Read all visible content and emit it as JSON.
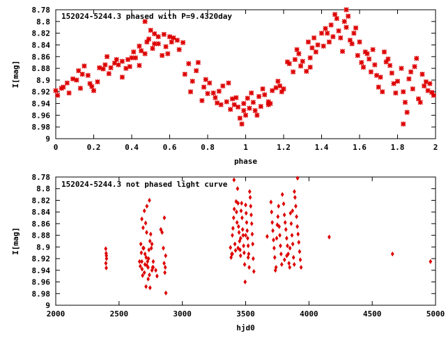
{
  "chart_data": [
    {
      "type": "scatter",
      "title": "152024-5244.3 phased with P=9.4320day",
      "xlabel": "phase",
      "ylabel": "I[mag]",
      "xlim": [
        0,
        2
      ],
      "ylim": [
        8.78,
        9.0
      ],
      "y_inverted": true,
      "x_ticks": [
        "0",
        "0.2",
        "0.4",
        "0.6",
        "0.8",
        "1",
        "1.2",
        "1.4",
        "1.6",
        "1.8",
        "2"
      ],
      "y_ticks": [
        "8.78",
        "8.8",
        "8.82",
        "8.84",
        "8.86",
        "8.88",
        "8.9",
        "8.92",
        "8.94",
        "8.96",
        "8.98",
        "9"
      ],
      "marker": "cross",
      "color": "#dd0000",
      "points": [
        [
          0.0,
          8.918
        ],
        [
          0.01,
          8.926
        ],
        [
          0.03,
          8.914
        ],
        [
          0.04,
          8.912
        ],
        [
          0.06,
          8.905
        ],
        [
          0.07,
          8.922
        ],
        [
          0.09,
          8.898
        ],
        [
          0.11,
          8.9
        ],
        [
          0.12,
          8.884
        ],
        [
          0.13,
          8.914
        ],
        [
          0.14,
          8.89
        ],
        [
          0.15,
          8.876
        ],
        [
          0.17,
          8.892
        ],
        [
          0.18,
          8.906
        ],
        [
          0.19,
          8.911
        ],
        [
          0.2,
          8.918
        ],
        [
          0.22,
          8.903
        ],
        [
          0.23,
          8.879
        ],
        [
          0.25,
          8.881
        ],
        [
          0.26,
          8.874
        ],
        [
          0.27,
          8.86
        ],
        [
          0.28,
          8.889
        ],
        [
          0.29,
          8.879
        ],
        [
          0.31,
          8.871
        ],
        [
          0.32,
          8.865
        ],
        [
          0.33,
          8.874
        ],
        [
          0.35,
          8.895
        ],
        [
          0.35,
          8.868
        ],
        [
          0.37,
          8.88
        ],
        [
          0.38,
          8.865
        ],
        [
          0.39,
          8.877
        ],
        [
          0.4,
          8.862
        ],
        [
          0.41,
          8.852
        ],
        [
          0.42,
          8.862
        ],
        [
          0.44,
          8.875
        ],
        [
          0.44,
          8.842
        ],
        [
          0.45,
          8.85
        ],
        [
          0.47,
          8.855
        ],
        [
          0.48,
          8.835
        ],
        [
          0.49,
          8.83
        ],
        [
          0.5,
          8.815
        ],
        [
          0.51,
          8.846
        ],
        [
          0.52,
          8.838
        ],
        [
          0.54,
          8.826
        ],
        [
          0.54,
          8.838
        ],
        [
          0.56,
          8.858
        ],
        [
          0.57,
          8.822
        ],
        [
          0.58,
          8.843
        ],
        [
          0.59,
          8.855
        ],
        [
          0.6,
          8.826
        ],
        [
          0.61,
          8.835
        ],
        [
          0.62,
          8.828
        ],
        [
          0.64,
          8.832
        ],
        [
          0.65,
          8.848
        ],
        [
          0.67,
          8.836
        ],
        [
          0.68,
          8.89
        ],
        [
          0.7,
          8.872
        ],
        [
          0.71,
          8.92
        ],
        [
          0.72,
          8.902
        ],
        [
          0.74,
          8.884
        ],
        [
          0.75,
          8.87
        ],
        [
          0.77,
          8.935
        ],
        [
          0.78,
          8.912
        ],
        [
          0.79,
          8.899
        ],
        [
          0.8,
          8.923
        ],
        [
          0.81,
          8.905
        ],
        [
          0.83,
          8.922
        ],
        [
          0.84,
          8.93
        ],
        [
          0.85,
          8.939
        ],
        [
          0.86,
          8.919
        ],
        [
          0.87,
          8.942
        ],
        [
          0.88,
          8.91
        ],
        [
          0.9,
          8.937
        ],
        [
          0.91,
          8.905
        ],
        [
          0.92,
          8.95
        ],
        [
          0.93,
          8.932
        ],
        [
          0.94,
          8.942
        ],
        [
          0.95,
          8.93
        ],
        [
          0.96,
          8.946
        ],
        [
          0.97,
          8.965
        ],
        [
          0.98,
          8.975
        ],
        [
          0.99,
          8.952
        ],
        [
          0.99,
          8.94
        ],
        [
          1.0,
          8.96
        ],
        [
          1.01,
          8.931
        ],
        [
          1.02,
          8.948
        ],
        [
          1.03,
          8.922
        ],
        [
          1.04,
          8.938
        ],
        [
          1.05,
          8.952
        ],
        [
          1.06,
          8.96
        ],
        [
          1.07,
          8.928
        ],
        [
          1.08,
          8.945
        ],
        [
          1.09,
          8.915
        ],
        [
          1.1,
          8.925
        ],
        [
          1.12,
          8.937
        ],
        [
          1.13,
          8.94
        ],
        [
          1.14,
          8.918
        ],
        [
          1.16,
          8.913
        ],
        [
          1.17,
          8.902
        ],
        [
          1.18,
          8.91
        ],
        [
          1.19,
          8.92
        ],
        [
          1.2,
          8.915
        ],
        [
          1.22,
          8.869
        ],
        [
          1.23,
          8.872
        ],
        [
          1.25,
          8.886
        ],
        [
          1.26,
          8.865
        ],
        [
          1.27,
          8.848
        ],
        [
          1.28,
          8.855
        ],
        [
          1.29,
          8.876
        ],
        [
          1.3,
          8.868
        ],
        [
          1.32,
          8.885
        ],
        [
          1.33,
          8.835
        ],
        [
          1.34,
          8.862
        ],
        [
          1.35,
          8.845
        ],
        [
          1.36,
          8.828
        ],
        [
          1.37,
          8.852
        ],
        [
          1.38,
          8.84
        ],
        [
          1.4,
          8.82
        ],
        [
          1.41,
          8.842
        ],
        [
          1.42,
          8.812
        ],
        [
          1.43,
          8.82
        ],
        [
          1.44,
          8.835
        ],
        [
          1.45,
          8.806
        ],
        [
          1.46,
          8.826
        ],
        [
          1.47,
          8.788
        ],
        [
          1.48,
          8.795
        ],
        [
          1.49,
          8.816
        ],
        [
          1.5,
          8.828
        ],
        [
          1.51,
          8.851
        ],
        [
          1.52,
          8.8
        ],
        [
          1.53,
          8.81
        ],
        [
          1.54,
          8.791
        ],
        [
          1.55,
          8.832
        ],
        [
          1.56,
          8.838
        ],
        [
          1.57,
          8.82
        ],
        [
          1.58,
          8.811
        ],
        [
          1.59,
          8.858
        ],
        [
          1.6,
          8.835
        ],
        [
          1.61,
          8.87
        ],
        [
          1.62,
          8.878
        ],
        [
          1.63,
          8.852
        ],
        [
          1.64,
          8.855
        ],
        [
          1.65,
          8.864
        ],
        [
          1.66,
          8.886
        ],
        [
          1.67,
          8.848
        ],
        [
          1.68,
          8.874
        ],
        [
          1.69,
          8.892
        ],
        [
          1.7,
          8.912
        ],
        [
          1.71,
          8.895
        ],
        [
          1.72,
          8.92
        ],
        [
          1.73,
          8.852
        ],
        [
          1.74,
          8.869
        ],
        [
          1.75,
          8.864
        ],
        [
          1.76,
          8.875
        ],
        [
          1.77,
          8.888
        ],
        [
          1.78,
          8.906
        ],
        [
          1.79,
          8.922
        ],
        [
          1.8,
          8.902
        ],
        [
          1.82,
          8.88
        ],
        [
          1.83,
          8.92
        ],
        [
          1.84,
          8.938
        ],
        [
          1.85,
          8.955
        ],
        [
          1.86,
          8.898
        ],
        [
          1.87,
          8.886
        ],
        [
          1.88,
          8.915
        ],
        [
          1.89,
          8.877
        ],
        [
          1.9,
          8.863
        ],
        [
          1.91,
          8.932
        ],
        [
          1.92,
          8.938
        ],
        [
          1.93,
          8.89
        ],
        [
          1.94,
          8.91
        ],
        [
          1.95,
          8.903
        ],
        [
          1.96,
          8.918
        ],
        [
          1.97,
          8.906
        ],
        [
          1.98,
          8.921
        ],
        [
          1.99,
          8.926
        ],
        [
          1.34,
          8.878
        ],
        [
          1.53,
          8.78
        ],
        [
          1.12,
          8.942
        ],
        [
          0.52,
          8.821
        ],
        [
          0.47,
          8.8
        ],
        [
          1.83,
          8.975
        ]
      ]
    },
    {
      "type": "scatter",
      "title": "152024-5244.3 not phased light curve",
      "xlabel": "hjd0",
      "ylabel": "I[mag]",
      "xlim": [
        2000,
        5000
      ],
      "ylim": [
        8.78,
        9.0
      ],
      "y_inverted": true,
      "x_ticks": [
        "2000",
        "2500",
        "3000",
        "3500",
        "4000",
        "4500",
        "5000"
      ],
      "y_ticks": [
        "8.78",
        "8.8",
        "8.82",
        "8.84",
        "8.86",
        "8.88",
        "8.9",
        "8.92",
        "8.94",
        "8.96",
        "8.98",
        "9"
      ],
      "marker": "diamond",
      "color": "#dd0000",
      "points": [
        [
          2395,
          8.903
        ],
        [
          2398,
          8.911
        ],
        [
          2401,
          8.92
        ],
        [
          2396,
          8.928
        ],
        [
          2399,
          8.936
        ],
        [
          2400,
          8.915
        ],
        [
          2662,
          8.925
        ],
        [
          2668,
          8.933
        ],
        [
          2672,
          8.895
        ],
        [
          2676,
          8.91
        ],
        [
          2682,
          8.938
        ],
        [
          2686,
          8.949
        ],
        [
          2690,
          8.867
        ],
        [
          2695,
          8.902
        ],
        [
          2700,
          8.944
        ],
        [
          2705,
          8.93
        ],
        [
          2710,
          8.859
        ],
        [
          2714,
          8.918
        ],
        [
          2718,
          8.875
        ],
        [
          2721,
          8.932
        ],
        [
          2725,
          8.925
        ],
        [
          2729,
          8.935
        ],
        [
          2733,
          8.92
        ],
        [
          2736,
          8.905
        ],
        [
          2740,
          8.948
        ],
        [
          2744,
          8.89
        ],
        [
          2750,
          8.878
        ],
        [
          2755,
          8.902
        ],
        [
          2760,
          8.94
        ],
        [
          2765,
          8.935
        ],
        [
          2770,
          8.925
        ],
        [
          2790,
          8.94
        ],
        [
          2800,
          8.95
        ],
        [
          2680,
          8.852
        ],
        [
          2700,
          8.838
        ],
        [
          2720,
          8.83
        ],
        [
          2740,
          8.82
        ],
        [
          2760,
          8.895
        ],
        [
          2770,
          8.935
        ],
        [
          2830,
          8.87
        ],
        [
          2840,
          8.875
        ],
        [
          2850,
          8.902
        ],
        [
          2856,
          8.928
        ],
        [
          2862,
          8.944
        ],
        [
          2865,
          8.935
        ],
        [
          2868,
          8.915
        ],
        [
          2870,
          8.979
        ],
        [
          2858,
          8.85
        ],
        [
          2713,
          8.968
        ],
        [
          2745,
          8.97
        ],
        [
          2705,
          8.912
        ],
        [
          2680,
          8.925
        ],
        [
          2690,
          8.902
        ],
        [
          2730,
          8.955
        ],
        [
          3380,
          8.901
        ],
        [
          3385,
          8.918
        ],
        [
          3390,
          8.912
        ],
        [
          3395,
          8.88
        ],
        [
          3400,
          8.868
        ],
        [
          3405,
          8.85
        ],
        [
          3410,
          8.835
        ],
        [
          3415,
          8.895
        ],
        [
          3420,
          8.906
        ],
        [
          3425,
          8.822
        ],
        [
          3428,
          8.84
        ],
        [
          3432,
          8.858
        ],
        [
          3436,
          8.8
        ],
        [
          3440,
          8.825
        ],
        [
          3444,
          8.865
        ],
        [
          3448,
          8.875
        ],
        [
          3452,
          8.89
        ],
        [
          3456,
          8.905
        ],
        [
          3460,
          8.915
        ],
        [
          3464,
          8.838
        ],
        [
          3468,
          8.825
        ],
        [
          3472,
          8.85
        ],
        [
          3476,
          8.87
        ],
        [
          3480,
          8.88
        ],
        [
          3484,
          8.898
        ],
        [
          3488,
          8.91
        ],
        [
          3492,
          8.93
        ],
        [
          3496,
          8.96
        ],
        [
          3500,
          8.828
        ],
        [
          3504,
          8.842
        ],
        [
          3508,
          8.858
        ],
        [
          3512,
          8.872
        ],
        [
          3516,
          8.885
        ],
        [
          3520,
          8.898
        ],
        [
          3524,
          8.912
        ],
        [
          3528,
          8.935
        ],
        [
          3532,
          8.805
        ],
        [
          3536,
          8.815
        ],
        [
          3540,
          8.83
        ],
        [
          3544,
          8.845
        ],
        [
          3548,
          8.86
        ],
        [
          3552,
          8.878
        ],
        [
          3556,
          8.895
        ],
        [
          3560,
          8.92
        ],
        [
          3565,
          8.942
        ],
        [
          3440,
          8.902
        ],
        [
          3460,
          8.885
        ],
        [
          3500,
          8.88
        ],
        [
          3520,
          8.918
        ],
        [
          3408,
          8.785
        ],
        [
          3395,
          8.912
        ],
        [
          3700,
          8.823
        ],
        [
          3705,
          8.84
        ],
        [
          3710,
          8.858
        ],
        [
          3715,
          8.872
        ],
        [
          3720,
          8.888
        ],
        [
          3725,
          8.902
        ],
        [
          3730,
          8.918
        ],
        [
          3735,
          8.94
        ],
        [
          3740,
          8.935
        ],
        [
          3745,
          8.885
        ],
        [
          3750,
          8.862
        ],
        [
          3755,
          8.848
        ],
        [
          3760,
          8.83
        ],
        [
          3765,
          8.865
        ],
        [
          3770,
          8.88
        ],
        [
          3775,
          8.898
        ],
        [
          3780,
          8.912
        ],
        [
          3785,
          8.93
        ],
        [
          3790,
          8.81
        ],
        [
          3800,
          8.826
        ],
        [
          3806,
          8.845
        ],
        [
          3812,
          8.858
        ],
        [
          3818,
          8.87
        ],
        [
          3824,
          8.885
        ],
        [
          3830,
          8.898
        ],
        [
          3836,
          8.912
        ],
        [
          3842,
          8.928
        ],
        [
          3848,
          8.935
        ],
        [
          3854,
          8.842
        ],
        [
          3860,
          8.86
        ],
        [
          3866,
          8.88
        ],
        [
          3872,
          8.895
        ],
        [
          3878,
          8.918
        ],
        [
          3884,
          8.93
        ],
        [
          3890,
          8.815
        ],
        [
          3896,
          8.83
        ],
        [
          3902,
          8.848
        ],
        [
          3908,
          8.865
        ],
        [
          3914,
          8.878
        ],
        [
          3920,
          8.892
        ],
        [
          3926,
          8.908
        ],
        [
          3932,
          8.922
        ],
        [
          3938,
          8.935
        ],
        [
          3910,
          8.782
        ],
        [
          3885,
          8.805
        ],
        [
          3870,
          8.838
        ],
        [
          3850,
          8.902
        ],
        [
          3825,
          8.915
        ],
        [
          3807,
          8.922
        ],
        [
          3670,
          8.882
        ],
        [
          4160,
          8.883
        ],
        [
          4660,
          8.912
        ],
        [
          4960,
          8.925
        ]
      ]
    }
  ]
}
